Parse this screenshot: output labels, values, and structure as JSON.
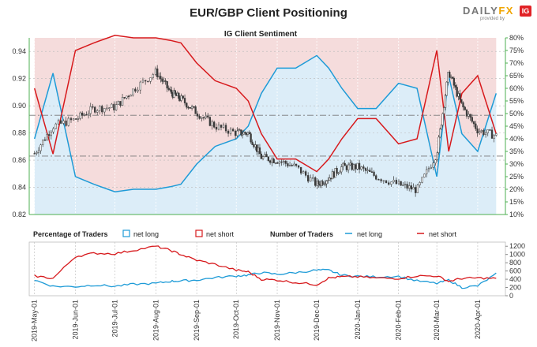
{
  "header": {
    "title": "EUR/GBP Client Positioning",
    "subtitle": "IG Client Sentiment"
  },
  "logo": {
    "word_a": "DAILY",
    "word_b": "FX",
    "tagline": "provided by",
    "badge": "IG"
  },
  "colors": {
    "long": "#1e9bd7",
    "short": "#d7191c",
    "price": "#3a3a3a",
    "long_fill": "#dcedf8",
    "short_fill": "#f5dcdc",
    "green_axis": "#4caf50"
  },
  "legend": {
    "pct_label": "Percentage of Traders",
    "pct_long": "net long",
    "pct_short": "net short",
    "num_label": "Number of Traders",
    "num_long": "net long",
    "num_short": "net short"
  },
  "chart_data": [
    {
      "type": "line",
      "title": "IG Client Sentiment",
      "x": [
        "2019-05-01",
        "2019-05-15",
        "2019-06-01",
        "2019-06-15",
        "2019-07-01",
        "2019-07-15",
        "2019-08-01",
        "2019-08-12",
        "2019-08-20",
        "2019-09-01",
        "2019-09-15",
        "2019-10-01",
        "2019-10-10",
        "2019-10-20",
        "2019-11-01",
        "2019-11-15",
        "2019-12-01",
        "2019-12-10",
        "2019-12-20",
        "2020-01-01",
        "2020-01-15",
        "2020-02-01",
        "2020-02-15",
        "2020-03-01",
        "2020-03-10",
        "2020-03-20",
        "2020-04-01",
        "2020-04-15"
      ],
      "left_axis": {
        "ticks": [
          "0.82",
          "0.84",
          "0.86",
          "0.88",
          "0.90",
          "0.92",
          "0.94"
        ],
        "range": [
          0.82,
          0.95
        ]
      },
      "right_axis": {
        "ticks": [
          "10%",
          "15%",
          "20%",
          "25%",
          "30%",
          "35%",
          "40%",
          "45%",
          "50%",
          "55%",
          "60%",
          "65%",
          "70%",
          "75%",
          "80%"
        ],
        "range": [
          10,
          80
        ]
      },
      "x_ticks": [
        "2019-May-01",
        "2019-Jun-01",
        "2019-Jul-01",
        "2019-Aug-01",
        "2019-Sep-01",
        "2019-Oct-01",
        "2019-Nov-01",
        "2019-Dec-01",
        "2020-Jan-01",
        "2020-Feb-01",
        "2020-Mar-01",
        "2020-Apr-01"
      ],
      "series": [
        {
          "name": "price",
          "values": [
            0.865,
            0.885,
            0.89,
            0.898,
            0.899,
            0.912,
            0.925,
            0.91,
            0.905,
            0.895,
            0.885,
            0.88,
            0.88,
            0.862,
            0.86,
            0.855,
            0.842,
            0.847,
            0.855,
            0.855,
            0.848,
            0.842,
            0.838,
            0.865,
            0.925,
            0.9,
            0.882,
            0.878
          ]
        },
        {
          "name": "net long",
          "values": [
            40,
            66,
            25,
            22,
            19,
            20,
            20,
            21,
            22,
            30,
            37,
            40,
            45,
            58,
            68,
            68,
            73,
            68,
            60,
            52,
            52,
            62,
            60,
            25,
            65,
            42,
            35,
            58
          ]
        },
        {
          "name": "net short",
          "values": [
            60,
            34,
            75,
            78,
            81,
            80,
            80,
            79,
            78,
            70,
            63,
            60,
            55,
            42,
            32,
            32,
            27,
            32,
            40,
            48,
            48,
            38,
            40,
            75,
            35,
            58,
            65,
            42
          ]
        }
      ],
      "ref_lines": [
        0.893,
        0.863
      ]
    },
    {
      "type": "line",
      "right_axis": {
        "ticks": [
          "0",
          "200",
          "400",
          "600",
          "800",
          "1000",
          "1200"
        ],
        "range": [
          0,
          1300
        ]
      },
      "series": [
        {
          "name": "net long",
          "values": [
            380,
            230,
            220,
            260,
            230,
            280,
            300,
            350,
            360,
            380,
            440,
            480,
            500,
            560,
            520,
            560,
            620,
            620,
            500,
            470,
            460,
            470,
            360,
            300,
            380,
            200,
            240,
            530
          ]
        },
        {
          "name": "net short",
          "values": [
            480,
            420,
            950,
            1030,
            1020,
            1100,
            1200,
            1100,
            1000,
            860,
            760,
            620,
            580,
            400,
            380,
            320,
            270,
            430,
            460,
            460,
            430,
            420,
            480,
            480,
            350,
            420,
            430,
            420
          ]
        }
      ]
    }
  ]
}
